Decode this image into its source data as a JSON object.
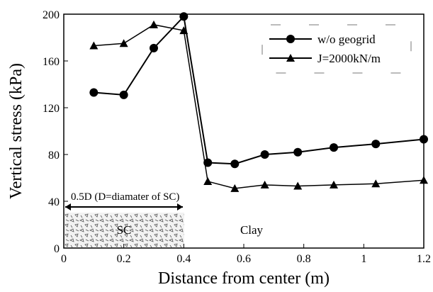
{
  "chart_data": {
    "type": "line",
    "x_label": "Distance from center (m)",
    "y_label": "Vertical stress (kPa)",
    "series": [
      {
        "name": "w/o geogrid",
        "color": "#000000",
        "marker": "circle",
        "x": [
          0.1,
          0.2,
          0.3,
          0.4,
          0.48,
          0.57,
          0.67,
          0.78,
          0.9,
          1.04,
          1.2
        ],
        "values": [
          133,
          131,
          171,
          198,
          73,
          72,
          80,
          82,
          86,
          89,
          93
        ]
      },
      {
        "name": "J=2000kN/m",
        "color": "#000000",
        "marker": "triangle",
        "x": [
          0.1,
          0.2,
          0.3,
          0.4,
          0.48,
          0.57,
          0.67,
          0.78,
          0.9,
          1.04,
          1.2
        ],
        "values": [
          173,
          175,
          191,
          186,
          57,
          51,
          54,
          53,
          54,
          55,
          58
        ]
      }
    ],
    "xlim": [
      0,
      1.2
    ],
    "xticks": [
      0,
      0.2,
      0.4,
      0.6,
      0.8,
      1,
      1.2
    ],
    "ylim": [
      0,
      200
    ],
    "yticks": [
      0,
      40,
      80,
      120,
      160,
      200
    ],
    "annotations": [
      "0.5D (D=diamater of SC)",
      "SC",
      "Clay"
    ],
    "legend": "upper right"
  }
}
